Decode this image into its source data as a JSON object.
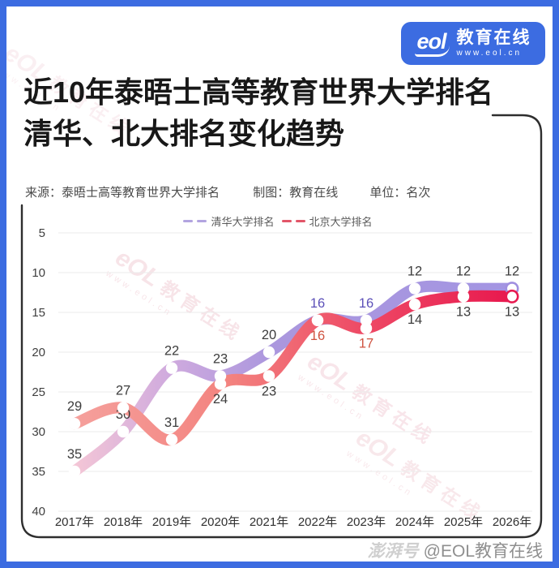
{
  "header": {
    "logo_mark": "eol",
    "logo_text": "教育在线",
    "logo_url": "www.eol.cn"
  },
  "title": {
    "line1": "近10年泰晤士高等教育世界大学排名",
    "line2": "清华、北大排名变化趋势"
  },
  "meta": {
    "source": "来源：泰晤士高等教育世界大学排名",
    "author": "制图：教育在线",
    "unit": "单位：名次"
  },
  "watermark": {
    "mark": "eOL",
    "text": "教育在线",
    "sub": "www.eol.cn"
  },
  "footer": {
    "platform": "澎湃号",
    "account": "@EOL教育在线"
  },
  "chart_data": {
    "type": "line",
    "title": "近10年泰晤士高等教育世界大学排名 清华、北大排名变化趋势",
    "ylabel": "名次",
    "ylim": [
      5,
      40
    ],
    "y_inverted": true,
    "grid": true,
    "legend_position": "top",
    "categories": [
      "2017年",
      "2018年",
      "2019年",
      "2020年",
      "2021年",
      "2022年",
      "2023年",
      "2024年",
      "2025年",
      "2026年"
    ],
    "y_ticks": [
      5,
      10,
      15,
      20,
      25,
      30,
      35,
      40
    ],
    "series": [
      {
        "name": "清华大学排名",
        "values": [
          35,
          30,
          22,
          23,
          20,
          16,
          16,
          12,
          12,
          12
        ],
        "gradient": [
          [
            "0%",
            "#f4c6d6"
          ],
          [
            "22%",
            "#cfaade"
          ],
          [
            "45%",
            "#ab97de"
          ],
          [
            "100%",
            "#a395e2"
          ]
        ],
        "legend_color": "#b2a4e0",
        "end_color": "#a08fe0",
        "label_side": [
          "above",
          "above",
          "above",
          "above",
          "above",
          "above",
          "above",
          "above",
          "above",
          "above"
        ],
        "label_colors": [
          null,
          null,
          null,
          null,
          null,
          "#5c50b8",
          "#5c50b8",
          null,
          null,
          null
        ]
      },
      {
        "name": "北京大学排名",
        "values": [
          29,
          27,
          31,
          24,
          23,
          16,
          17,
          14,
          13,
          13
        ],
        "gradient": [
          [
            "0%",
            "#f5a09c"
          ],
          [
            "35%",
            "#f3837f"
          ],
          [
            "65%",
            "#ee4b66"
          ],
          [
            "100%",
            "#e8184e"
          ]
        ],
        "legend_color": "#e25568",
        "end_color": "#e81a50",
        "label_side": [
          "above",
          "above",
          "above",
          "below",
          "below",
          "below",
          "below",
          "below",
          "below",
          "below"
        ],
        "label_colors": [
          null,
          null,
          null,
          null,
          null,
          "#cf5340",
          "#cf5340",
          null,
          null,
          null
        ]
      }
    ]
  }
}
